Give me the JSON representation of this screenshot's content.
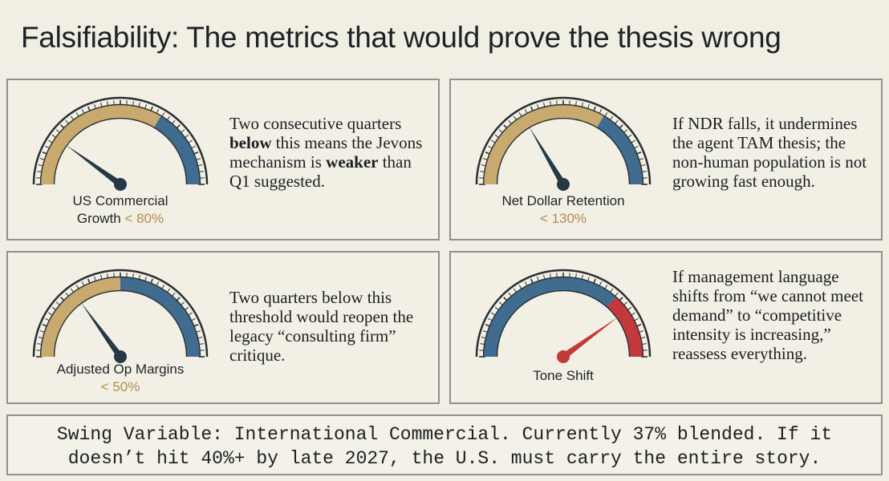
{
  "title": "Falsifiability: The metrics that would prove the thesis wrong",
  "colors": {
    "tan": "#c8aa6e",
    "blue": "#3f6c8f",
    "red": "#c3383a",
    "needle": "#263846",
    "threshold_text": "#b08d4f"
  },
  "cards": [
    {
      "gauge_label": "US Commercial",
      "gauge_label_2": "Growth",
      "threshold": "< 80%",
      "tan_fraction": 0.67,
      "needle_fraction": 0.2,
      "description": [
        {
          "text": "Two consecutive quarters ",
          "bold": false
        },
        {
          "text": "below",
          "bold": true
        },
        {
          "text": " this means the Jevons mechanism is ",
          "bold": false
        },
        {
          "text": "weaker",
          "bold": true
        },
        {
          "text": " than Q1 suggested.",
          "bold": false
        }
      ]
    },
    {
      "gauge_label": "Net Dollar Retention",
      "gauge_label_2": "",
      "threshold": "< 130%",
      "tan_fraction": 0.67,
      "needle_fraction": 0.33,
      "description": [
        {
          "text": "If NDR falls, it undermines the agent TAM thesis; the non-human population is not growing fast enough.",
          "bold": false
        }
      ]
    },
    {
      "gauge_label": "Adjusted Op Margins",
      "gauge_label_2": "",
      "threshold": "< 50%",
      "tan_fraction": 0.5,
      "needle_fraction": 0.3,
      "description": [
        {
          "text": "Two quarters below this threshold would reopen the legacy “consulting firm” critique.",
          "bold": false
        }
      ]
    },
    {
      "gauge_label": "Tone Shift",
      "gauge_label_2": "",
      "threshold": "",
      "tan_fraction": 0,
      "red_fraction": 0.27,
      "needle_fraction": 0.8,
      "description": [
        {
          "text": "If management language shifts from “we cannot meet demand” to “competitive intensity is increasing,” reassess everything.",
          "bold": false
        }
      ]
    }
  ],
  "footer": {
    "line1": "Swing Variable: International Commercial. Currently 37% blended. If it",
    "line2": "doesn’t hit 40%+ by late 2027, the U.S. must carry the entire story."
  }
}
